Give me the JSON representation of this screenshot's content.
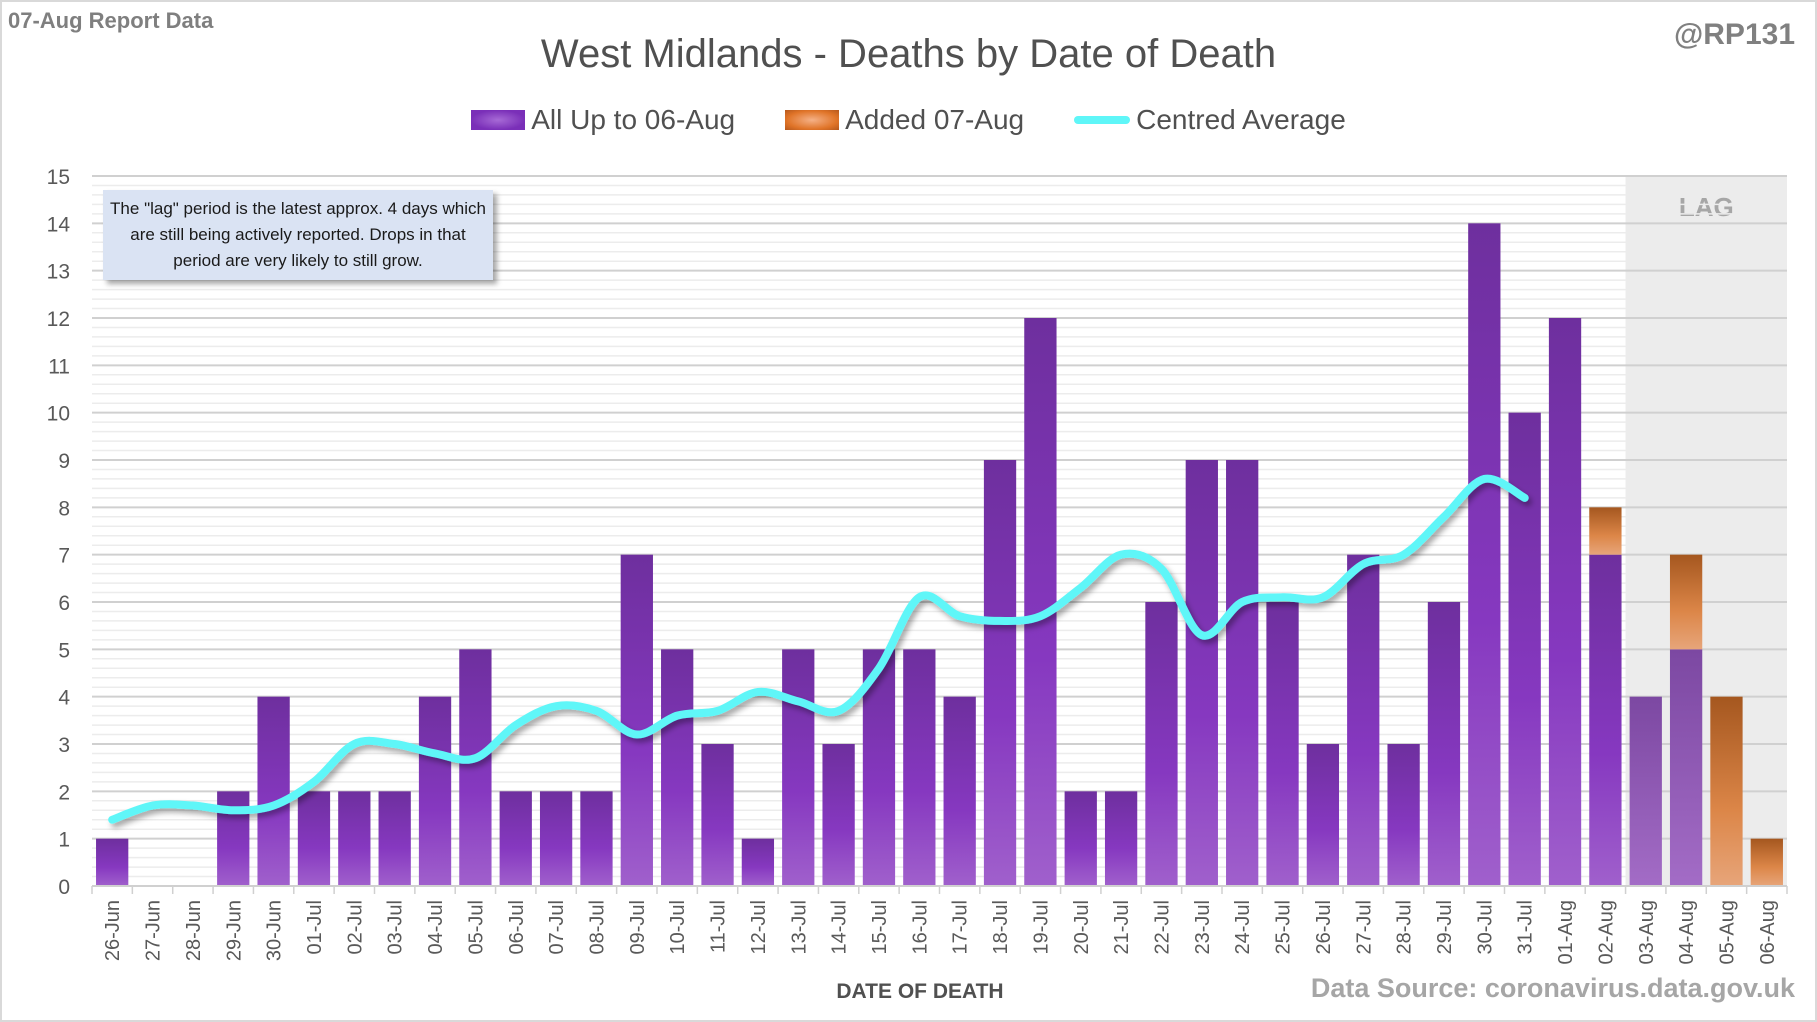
{
  "header": {
    "report_label": "07-Aug Report Data",
    "handle": "@RP131",
    "source": "Data Source: coronavirus.data.gov.uk"
  },
  "annotation": {
    "text": "The \"lag\" period is the latest approx. 4 days which are still being actively reported.  Drops in that period are very likely to still grow."
  },
  "lag_label": "LAG",
  "colors": {
    "base": "#7b2fb8",
    "added": "#e07428",
    "average": "#5ff6f8",
    "lag_shade": "#ececec"
  },
  "chart_data": {
    "type": "bar",
    "stacked": true,
    "title": "West Midlands - Deaths by Date of Death",
    "xlabel": "DATE OF DEATH",
    "ylabel": "",
    "ylim": [
      0,
      15
    ],
    "yticks": [
      0,
      1,
      2,
      3,
      4,
      5,
      6,
      7,
      8,
      9,
      10,
      11,
      12,
      13,
      14,
      15
    ],
    "grid": true,
    "legend_position": "top-center",
    "lag_region": [
      "03-Aug",
      "06-Aug"
    ],
    "categories": [
      "26-Jun",
      "27-Jun",
      "28-Jun",
      "29-Jun",
      "30-Jun",
      "01-Jul",
      "02-Jul",
      "03-Jul",
      "04-Jul",
      "05-Jul",
      "06-Jul",
      "07-Jul",
      "08-Jul",
      "09-Jul",
      "10-Jul",
      "11-Jul",
      "12-Jul",
      "13-Jul",
      "14-Jul",
      "15-Jul",
      "16-Jul",
      "17-Jul",
      "18-Jul",
      "19-Jul",
      "20-Jul",
      "21-Jul",
      "22-Jul",
      "23-Jul",
      "24-Jul",
      "25-Jul",
      "26-Jul",
      "27-Jul",
      "28-Jul",
      "29-Jul",
      "30-Jul",
      "31-Jul",
      "01-Aug",
      "02-Aug",
      "03-Aug",
      "04-Aug",
      "05-Aug",
      "06-Aug"
    ],
    "series": [
      {
        "name": "All Up to 06-Aug",
        "kind": "bar",
        "values": [
          1,
          0,
          0,
          2,
          4,
          2,
          2,
          2,
          4,
          5,
          2,
          2,
          2,
          7,
          5,
          3,
          1,
          5,
          3,
          5,
          5,
          4,
          9,
          12,
          2,
          2,
          6,
          9,
          9,
          6,
          3,
          7,
          3,
          6,
          14,
          10,
          12,
          7,
          4,
          5,
          0,
          0
        ]
      },
      {
        "name": "Added 07-Aug",
        "kind": "bar",
        "values": [
          0,
          0,
          0,
          0,
          0,
          0,
          0,
          0,
          0,
          0,
          0,
          0,
          0,
          0,
          0,
          0,
          0,
          0,
          0,
          0,
          0,
          0,
          0,
          0,
          0,
          0,
          0,
          0,
          0,
          0,
          0,
          0,
          0,
          0,
          0,
          0,
          0,
          1,
          0,
          2,
          4,
          1
        ]
      },
      {
        "name": "Centred Average",
        "kind": "line",
        "values": [
          1.4,
          1.7,
          1.7,
          1.6,
          1.7,
          2.2,
          3.0,
          3.0,
          2.8,
          2.7,
          3.4,
          3.8,
          3.7,
          3.2,
          3.6,
          3.7,
          4.1,
          3.9,
          3.7,
          4.6,
          6.1,
          5.7,
          5.6,
          5.7,
          6.3,
          7.0,
          6.7,
          5.3,
          6.0,
          6.1,
          6.1,
          6.8,
          7.0,
          7.8,
          8.6,
          8.2,
          null,
          null,
          null,
          null,
          null,
          null
        ]
      }
    ]
  }
}
